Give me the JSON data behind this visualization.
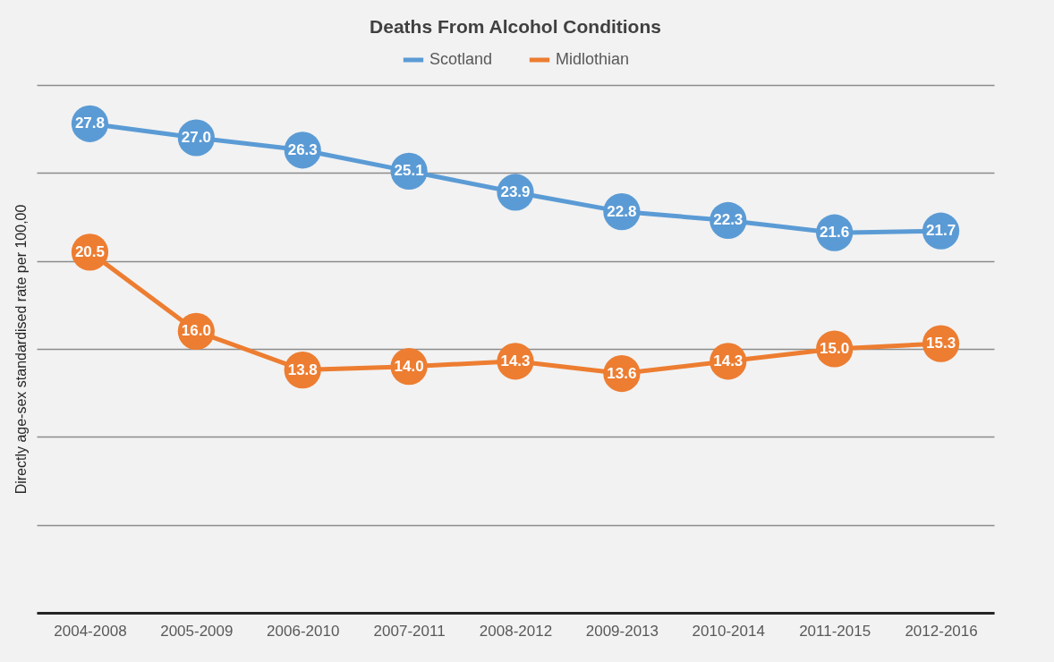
{
  "chart_data": {
    "type": "line",
    "title": "Deaths From Alcohol Conditions",
    "ylabel": "Directly age-sex standardised rate per 100,00",
    "categories": [
      "2004-2008",
      "2005-2009",
      "2006-2010",
      "2007-2011",
      "2008-2012",
      "2009-2013",
      "2010-2014",
      "2011-2015",
      "2012-2016"
    ],
    "series": [
      {
        "name": "Scotland",
        "color": "#5b9bd5",
        "values": [
          27.8,
          27.0,
          26.3,
          25.1,
          23.9,
          22.8,
          22.3,
          21.6,
          21.7
        ],
        "value_labels": [
          "27.8",
          "27.0",
          "26.3",
          "25.1",
          "23.9",
          "22.8",
          "22.3",
          "21.6",
          "21.7"
        ]
      },
      {
        "name": "Midlothian",
        "color": "#ed7d31",
        "values": [
          20.5,
          16.0,
          13.8,
          14.0,
          14.3,
          13.6,
          14.3,
          15.0,
          15.3
        ],
        "value_labels": [
          "20.5",
          "16.0",
          "13.8",
          "14.0",
          "14.3",
          "13.6",
          "14.3",
          "15.0",
          "15.3"
        ]
      }
    ],
    "ylim": [
      0,
      30
    ],
    "yticks": [
      {
        "value": 0,
        "label": null
      },
      {
        "value": 5,
        "label": null
      },
      {
        "value": 10,
        "label": null
      },
      {
        "value": 15,
        "label": null
      },
      {
        "value": 20,
        "label": null
      },
      {
        "value": 25,
        "label": null
      },
      {
        "value": 30,
        "label": null
      }
    ],
    "tick_labels": "x",
    "grid": "y",
    "legend": "top",
    "marker": "circle",
    "line_style": "solid"
  }
}
